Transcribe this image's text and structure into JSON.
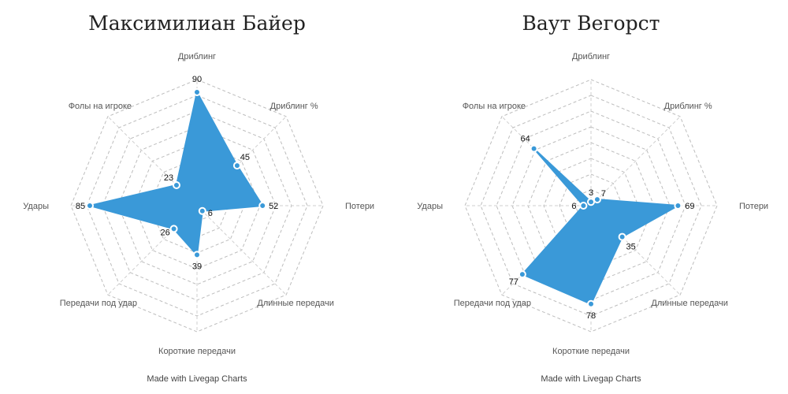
{
  "chart_data": [
    {
      "type": "radar",
      "title": "Максимилиан Байер",
      "axes": [
        "Дриблинг",
        "Дриблинг %",
        "Потери",
        "Длинные передачи",
        "Короткие передачи",
        "Передачи под удар",
        "Удары",
        "Фолы на игроке"
      ],
      "values": [
        90,
        45,
        52,
        6,
        39,
        26,
        85,
        23
      ],
      "range": [
        0,
        100
      ],
      "grid_levels": 8,
      "color": "#3a99d8",
      "credit": "Made with Livegap Charts"
    },
    {
      "type": "radar",
      "title": "Ваут Вегорст",
      "axes": [
        "Дриблинг",
        "Дриблинг %",
        "Потери",
        "Длинные передачи",
        "Короткие передачи",
        "Передачи под удар",
        "Удары",
        "Фолы на игроке"
      ],
      "values": [
        3,
        7,
        69,
        35,
        78,
        77,
        6,
        64
      ],
      "range": [
        0,
        100
      ],
      "grid_levels": 8,
      "color": "#3a99d8",
      "credit": "Made with Livegap Charts"
    }
  ]
}
